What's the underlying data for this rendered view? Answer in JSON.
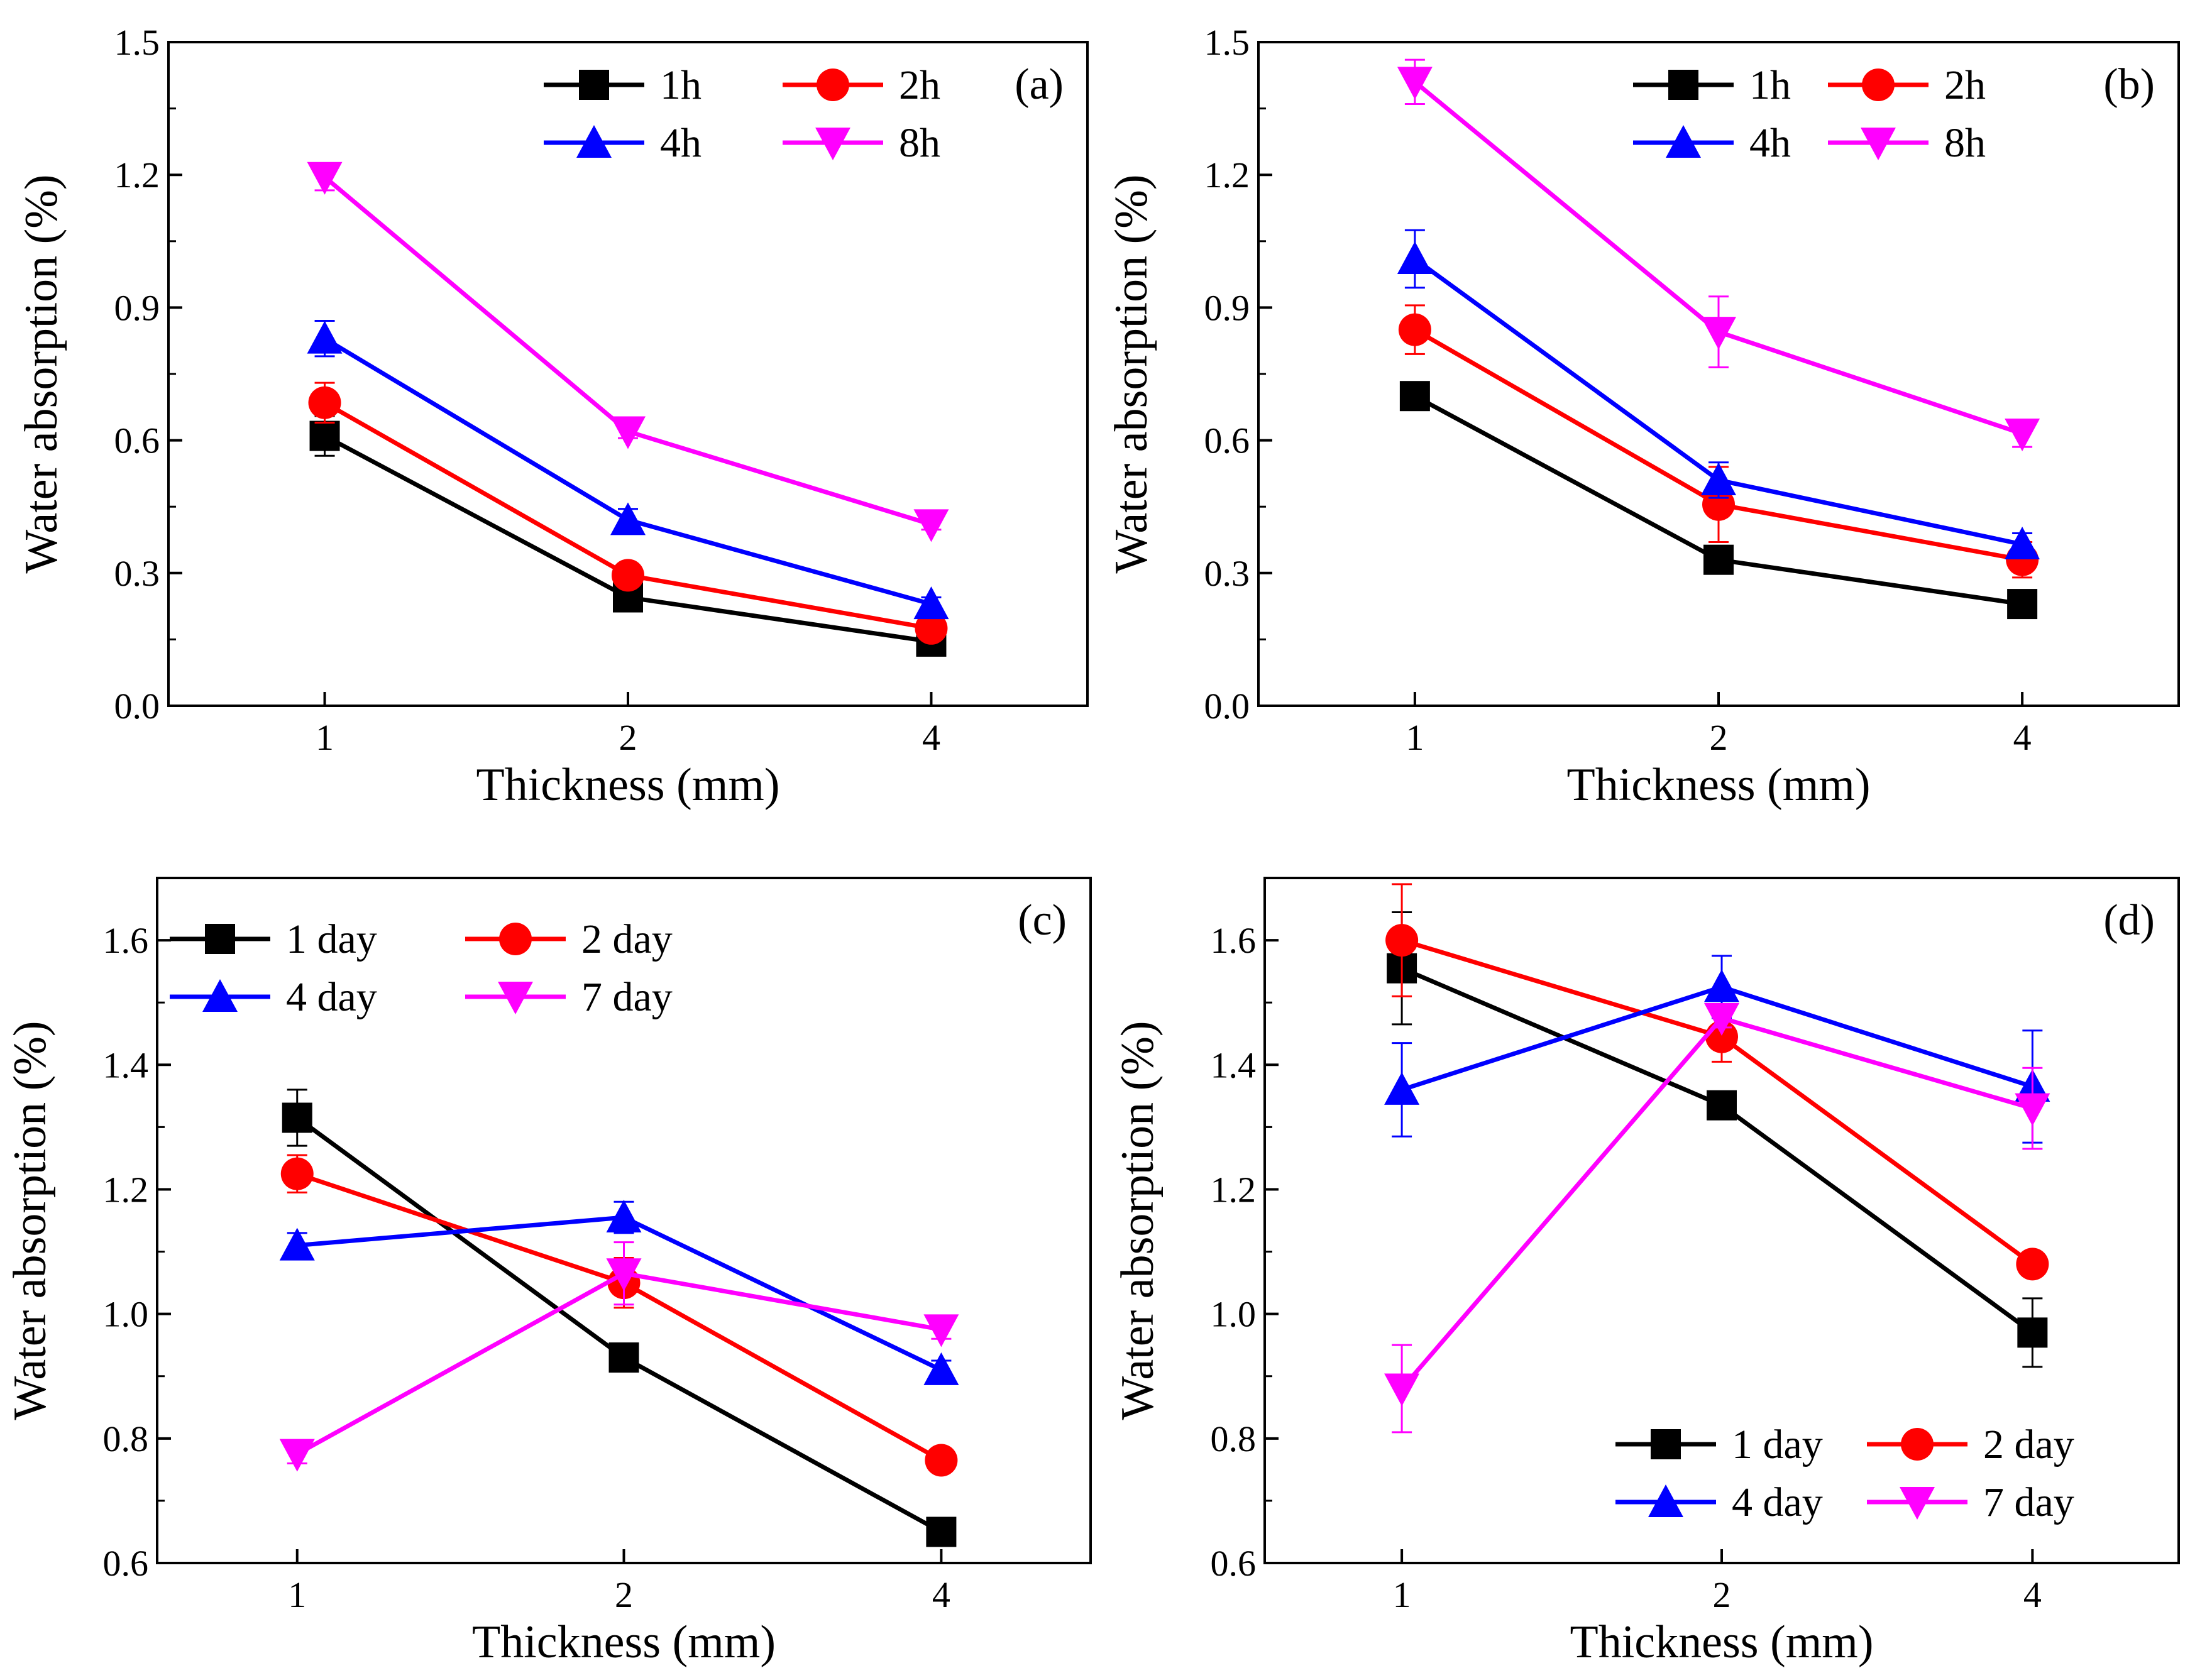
{
  "chart_data": [
    {
      "type": "line",
      "panel_label": "(a)",
      "xlabel": "Thickness (mm)",
      "ylabel": "Water absorption (%)",
      "categories": [
        "1",
        "2",
        "4"
      ],
      "ylim": [
        0.0,
        1.5
      ],
      "yticks": [
        "0.0",
        "0.3",
        "0.6",
        "0.9",
        "1.2",
        "1.5"
      ],
      "legend_position": "top-right",
      "series": [
        {
          "name": "1h",
          "marker": "square",
          "values": [
            0.61,
            0.245,
            0.145
          ],
          "errors": [
            0.045,
            0.015,
            0.012
          ]
        },
        {
          "name": "2h",
          "marker": "circle",
          "values": [
            0.685,
            0.295,
            0.175
          ],
          "errors": [
            0.045,
            0.01,
            0.012
          ]
        },
        {
          "name": "4h",
          "marker": "triangle-up",
          "values": [
            0.83,
            0.42,
            0.23
          ],
          "errors": [
            0.04,
            0.025,
            0.015
          ]
        },
        {
          "name": "8h",
          "marker": "triangle-down",
          "values": [
            1.195,
            0.62,
            0.41
          ],
          "errors": [
            0.03,
            0.015,
            0.012
          ]
        }
      ]
    },
    {
      "type": "line",
      "panel_label": "(b)",
      "xlabel": "Thickness (mm)",
      "ylabel": "Water absorption (%)",
      "categories": [
        "1",
        "2",
        "4"
      ],
      "ylim": [
        0.0,
        1.5
      ],
      "yticks": [
        "0.0",
        "0.3",
        "0.6",
        "0.9",
        "1.2",
        "1.5"
      ],
      "legend_position": "top-right",
      "series": [
        {
          "name": "1h",
          "marker": "square",
          "values": [
            0.7,
            0.33,
            0.23
          ],
          "errors": [
            0.03,
            0.025,
            0.025
          ]
        },
        {
          "name": "2h",
          "marker": "circle",
          "values": [
            0.85,
            0.455,
            0.33
          ],
          "errors": [
            0.055,
            0.085,
            0.04
          ]
        },
        {
          "name": "4h",
          "marker": "triangle-up",
          "values": [
            1.01,
            0.51,
            0.365
          ],
          "errors": [
            0.065,
            0.04,
            0.025
          ]
        },
        {
          "name": "8h",
          "marker": "triangle-down",
          "values": [
            1.41,
            0.845,
            0.615
          ],
          "errors": [
            0.05,
            0.08,
            0.03
          ]
        }
      ]
    },
    {
      "type": "line",
      "panel_label": "(c)",
      "xlabel": "Thickness (mm)",
      "ylabel": "Water absorption (%)",
      "categories": [
        "1",
        "2",
        "4"
      ],
      "ylim": [
        0.6,
        1.7
      ],
      "yticks": [
        "0.6",
        "0.8",
        "1.0",
        "1.2",
        "1.4",
        "1.6"
      ],
      "legend_position": "top-left",
      "series": [
        {
          "name": "1 day",
          "marker": "square",
          "values": [
            1.315,
            0.93,
            0.65
          ],
          "errors": [
            0.045,
            0.01,
            0.01
          ]
        },
        {
          "name": "2 day",
          "marker": "circle",
          "values": [
            1.225,
            1.05,
            0.765
          ],
          "errors": [
            0.03,
            0.04,
            0.01
          ]
        },
        {
          "name": "4 day",
          "marker": "triangle-up",
          "values": [
            1.11,
            1.155,
            0.91
          ],
          "errors": [
            0.02,
            0.025,
            0.015
          ]
        },
        {
          "name": "7 day",
          "marker": "triangle-down",
          "values": [
            0.775,
            1.065,
            0.975
          ],
          "errors": [
            0.015,
            0.05,
            0.015
          ]
        }
      ]
    },
    {
      "type": "line",
      "panel_label": "(d)",
      "xlabel": "Thickness (mm)",
      "ylabel": "Water absorption (%)",
      "categories": [
        "1",
        "2",
        "4"
      ],
      "ylim": [
        0.6,
        1.7
      ],
      "yticks": [
        "0.6",
        "0.8",
        "1.0",
        "1.2",
        "1.4",
        "1.6"
      ],
      "legend_position": "bottom-right",
      "series": [
        {
          "name": "1 day",
          "marker": "square",
          "values": [
            1.555,
            1.335,
            0.97
          ],
          "errors": [
            0.09,
            0.015,
            0.055
          ]
        },
        {
          "name": "2 day",
          "marker": "circle",
          "values": [
            1.6,
            1.445,
            1.08
          ],
          "errors": [
            0.09,
            0.04,
            0.015
          ]
        },
        {
          "name": "4 day",
          "marker": "triangle-up",
          "values": [
            1.36,
            1.525,
            1.365
          ],
          "errors": [
            0.075,
            0.05,
            0.09
          ]
        },
        {
          "name": "7 day",
          "marker": "triangle-down",
          "values": [
            0.88,
            1.475,
            1.33
          ],
          "errors": [
            0.07,
            0.015,
            0.065
          ]
        }
      ]
    }
  ],
  "colors": [
    "#000000",
    "#ff0000",
    "#0000ff",
    "#ff00ff"
  ]
}
